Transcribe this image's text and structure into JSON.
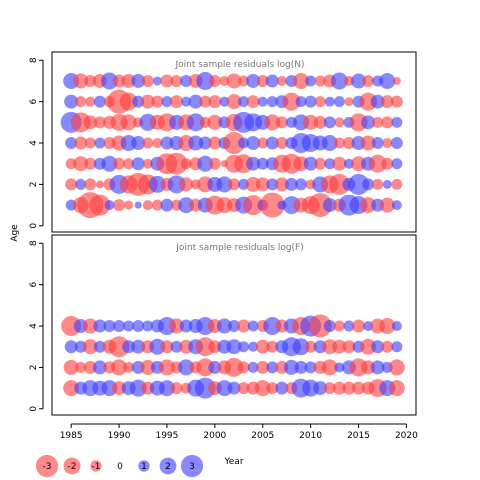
{
  "chart_data": {
    "type": "scatter",
    "xlabel": "Year",
    "ylabel": "Age",
    "x_range": [
      1983,
      2021
    ],
    "x_ticks": [
      1985,
      1990,
      1995,
      2000,
      2005,
      2010,
      2015,
      2020
    ],
    "y_ticks": [
      0,
      2,
      4,
      6,
      8
    ],
    "positive_color": "#3a3aff",
    "negative_color": "#ff3a3a",
    "panels": [
      {
        "title": "Joint sample residuals log(N)",
        "ylim": [
          -0.3,
          8.4
        ],
        "ages": [
          1,
          2,
          3,
          4,
          5,
          6,
          7
        ],
        "years": [
          1985,
          1986,
          1987,
          1988,
          1989,
          1990,
          1991,
          1992,
          1993,
          1994,
          1995,
          1996,
          1997,
          1998,
          1999,
          2000,
          2001,
          2002,
          2003,
          2004,
          2005,
          2006,
          2007,
          2008,
          2009,
          2010,
          2011,
          2012,
          2013,
          2014,
          2015,
          2016,
          2017,
          2018,
          2019
        ],
        "residuals": [
          [
            0.5,
            -1.0,
            -2.0,
            -1.5,
            0.4,
            -0.6,
            -0.3,
            0.1,
            -0.4,
            -0.5,
            0.7,
            -0.5,
            1.0,
            -0.7,
            0.9,
            -1.3,
            -1.0,
            -0.8,
            1.1,
            -1.4,
            0.5,
            -1.9,
            0.3,
            1.2,
            -0.9,
            -1.2,
            -1.8,
            0.8,
            -0.7,
            1.5,
            1.2,
            -1.0,
            0.7,
            -0.9,
            0.4
          ],
          [
            -0.6,
            0.5,
            -0.6,
            -0.2,
            -0.6,
            1.3,
            -1.2,
            -1.7,
            -1.4,
            1.1,
            -0.7,
            1.2,
            -0.8,
            -0.4,
            -1.0,
            0.9,
            1.0,
            -0.6,
            0.5,
            -0.9,
            -0.8,
            0.6,
            -0.8,
            0.7,
            0.6,
            -0.4,
            1.0,
            -1.2,
            -1.5,
            0.7,
            1.5,
            0.6,
            -0.5,
            0.3,
            -0.5
          ],
          [
            -0.5,
            -0.9,
            -0.6,
            0.6,
            1.0,
            -0.6,
            -0.5,
            0.7,
            -0.4,
            0.8,
            -1.5,
            -1.6,
            -0.5,
            -0.7,
            1.0,
            -0.6,
            -0.1,
            -1.2,
            -1.3,
            0.8,
            0.6,
            0.7,
            -1.2,
            -1.4,
            -0.9,
            0.8,
            -0.6,
            0.5,
            -0.8,
            0.4,
            -0.9,
            0.8,
            -1.2,
            -0.6,
            0.5
          ],
          [
            0.6,
            -0.7,
            -0.5,
            0.5,
            -0.6,
            -0.9,
            1.0,
            0.8,
            -0.5,
            -0.4,
            0.7,
            0.8,
            -1.0,
            0.9,
            0.7,
            -0.7,
            0.6,
            -1.6,
            0.5,
            0.8,
            -0.5,
            0.7,
            -0.6,
            0.6,
            1.4,
            1.2,
            0.9,
            1.0,
            -0.5,
            -0.6,
            0.8,
            -0.9,
            0.6,
            -0.4,
            0.6
          ],
          [
            1.5,
            -1.4,
            -0.8,
            -0.6,
            -0.7,
            -1.1,
            -1.0,
            -0.4,
            1.1,
            -0.9,
            -1.2,
            0.9,
            -1.0,
            1.2,
            -0.5,
            -0.9,
            0.6,
            -1.1,
            1.5,
            1.2,
            0.9,
            -1.0,
            -0.6,
            0.5,
            1.0,
            -0.9,
            -0.7,
            0.6,
            -0.4,
            0.5,
            -1.2,
            0.8,
            -0.5,
            -0.6,
            0.5
          ],
          [
            0.8,
            -0.5,
            -0.4,
            0.6,
            -0.5,
            -1.8,
            -1.2,
            0.6,
            -0.8,
            -0.6,
            0.5,
            -0.7,
            0.4,
            0.8,
            -0.6,
            -0.7,
            0.4,
            -0.9,
            0.5,
            -0.7,
            0.4,
            0.5,
            0.7,
            -1.2,
            0.5,
            0.6,
            -0.5,
            0.4,
            0.5,
            -0.3,
            0.6,
            -1.2,
            0.8,
            -0.7,
            -0.6
          ],
          [
            1.0,
            -0.9,
            -0.6,
            -0.8,
            1.1,
            -0.7,
            -0.8,
            0.8,
            -0.6,
            0.3,
            -0.7,
            -0.6,
            0.6,
            -0.8,
            1.2,
            -0.6,
            -0.4,
            -0.9,
            -0.5,
            0.8,
            -0.6,
            0.7,
            -0.4,
            0.6,
            -1.0,
            0.5,
            -0.5,
            -0.7,
            1.1,
            -0.4,
            0.9,
            -0.6,
            0.5,
            1.0,
            -0.2
          ]
        ]
      },
      {
        "title": "Joint sample residuals log(F)",
        "ylim": [
          -0.3,
          8.4
        ],
        "ages": [
          1,
          2,
          3,
          4
        ],
        "years": [
          1985,
          1986,
          1987,
          1988,
          1989,
          1990,
          1991,
          1992,
          1993,
          1994,
          1995,
          1996,
          1997,
          1998,
          1999,
          2000,
          2001,
          2002,
          2003,
          2004,
          2005,
          2006,
          2007,
          2008,
          2009,
          2010,
          2011,
          2012,
          2013,
          2014,
          2015,
          2016,
          2017,
          2018,
          2019
        ],
        "residuals": [
          [
            -1.0,
            0.7,
            1.0,
            0.9,
            1.0,
            -0.8,
            0.8,
            1.1,
            -0.7,
            0.9,
            1.0,
            -0.6,
            -0.5,
            1.1,
            1.5,
            -0.8,
            1.0,
            0.7,
            -0.6,
            -0.7,
            -1.0,
            -0.6,
            0.7,
            -0.6,
            1.3,
            1.1,
            0.8,
            -0.6,
            -0.7,
            -0.7,
            -0.7,
            -0.7,
            -1.2,
            1.0,
            -1.0
          ],
          [
            -0.9,
            -0.5,
            -0.7,
            0.8,
            -0.6,
            -1.0,
            -0.5,
            0.7,
            -0.9,
            0.7,
            -1.0,
            -0.6,
            1.0,
            -0.6,
            -1.2,
            0.7,
            -0.8,
            -1.3,
            -0.6,
            0.5,
            -0.7,
            0.6,
            -0.7,
            0.9,
            0.7,
            0.6,
            -0.7,
            -1.0,
            0.4,
            0.8,
            -1.2,
            -0.8,
            0.8,
            0.5,
            -1.0
          ],
          [
            0.7,
            0.6,
            -0.9,
            0.6,
            -0.8,
            -1.5,
            0.7,
            0.8,
            -0.7,
            1.0,
            -0.7,
            0.6,
            -0.8,
            0.9,
            -1.3,
            -0.7,
            0.8,
            0.9,
            0.5,
            0.4,
            -0.8,
            -0.6,
            0.7,
            1.3,
            1.1,
            -0.6,
            0.7,
            -0.9,
            -0.8,
            -0.7,
            0.6,
            -1.0,
            0.7,
            -0.6,
            0.5
          ],
          [
            -1.4,
            0.8,
            -0.9,
            0.7,
            0.6,
            0.6,
            0.5,
            0.6,
            0.5,
            0.7,
            1.2,
            -0.9,
            0.7,
            0.8,
            1.2,
            -0.8,
            0.9,
            0.6,
            -0.7,
            0.5,
            -0.6,
            1.2,
            -0.7,
            0.9,
            -1.2,
            1.5,
            -1.7,
            0.6,
            -0.5,
            0.5,
            -0.7,
            0.4,
            -0.9,
            -1.0,
            0.4
          ]
        ]
      }
    ],
    "legend": [
      {
        "value": -3,
        "label": "-3"
      },
      {
        "value": -2,
        "label": "-2"
      },
      {
        "value": -1,
        "label": "-1"
      },
      {
        "value": 0,
        "label": "0"
      },
      {
        "value": 1,
        "label": "1"
      },
      {
        "value": 2,
        "label": "2"
      },
      {
        "value": 3,
        "label": "3"
      }
    ],
    "grid": false,
    "legend_placement": "bottom-left"
  }
}
